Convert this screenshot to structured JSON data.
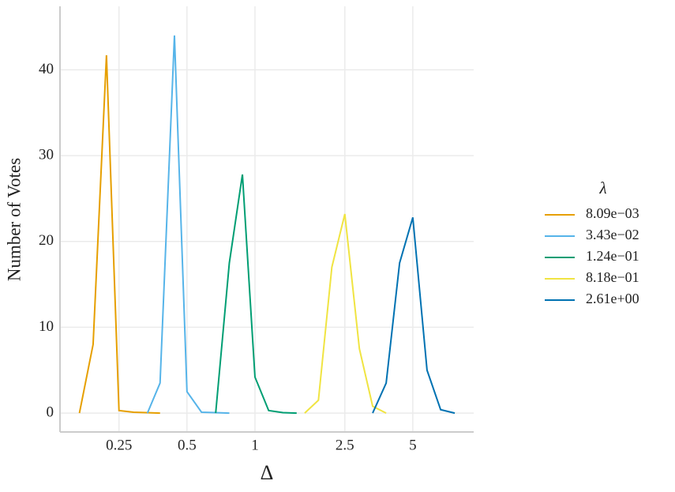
{
  "chart_data": {
    "type": "line",
    "x_label": "Δ",
    "y_label": "Number of Votes",
    "xscale": "log",
    "xlim": [
      0.137,
      9.3
    ],
    "ylim": [
      -2.2,
      47.4
    ],
    "xticks": [
      0.25,
      0.5,
      1,
      2.5,
      5
    ],
    "yticks": [
      0,
      10,
      20,
      30,
      40
    ],
    "grid": true,
    "legend_title": "λ",
    "legend_position": "right",
    "series": [
      {
        "name": "8.09e−03",
        "color": "#e69f00",
        "x": [
          0.167,
          0.192,
          0.22,
          0.25,
          0.29,
          0.33,
          0.38
        ],
        "values": [
          0,
          8,
          41.7,
          0.3,
          0.1,
          0.05,
          0
        ]
      },
      {
        "name": "3.43e−02",
        "color": "#56b4e9",
        "x": [
          0.334,
          0.38,
          0.44,
          0.5,
          0.58,
          0.67,
          0.77
        ],
        "values": [
          0,
          3.5,
          44,
          2.5,
          0.1,
          0.05,
          0
        ]
      },
      {
        "name": "1.24e−01",
        "color": "#009e73",
        "x": [
          0.67,
          0.77,
          0.88,
          1.0,
          1.15,
          1.33,
          1.53
        ],
        "values": [
          0,
          17.5,
          27.8,
          4.2,
          0.3,
          0.05,
          0
        ]
      },
      {
        "name": "8.18e−01",
        "color": "#f0e442",
        "x": [
          1.66,
          1.91,
          2.19,
          2.5,
          2.9,
          3.32,
          3.81
        ],
        "values": [
          0,
          1.5,
          17,
          23.2,
          7.5,
          0.8,
          0
        ]
      },
      {
        "name": "2.61e+00",
        "color": "#0072b2",
        "x": [
          3.32,
          3.81,
          4.37,
          5,
          5.78,
          6.64,
          7.67
        ],
        "values": [
          0,
          3.5,
          17.5,
          22.8,
          5,
          0.4,
          0
        ]
      }
    ]
  }
}
